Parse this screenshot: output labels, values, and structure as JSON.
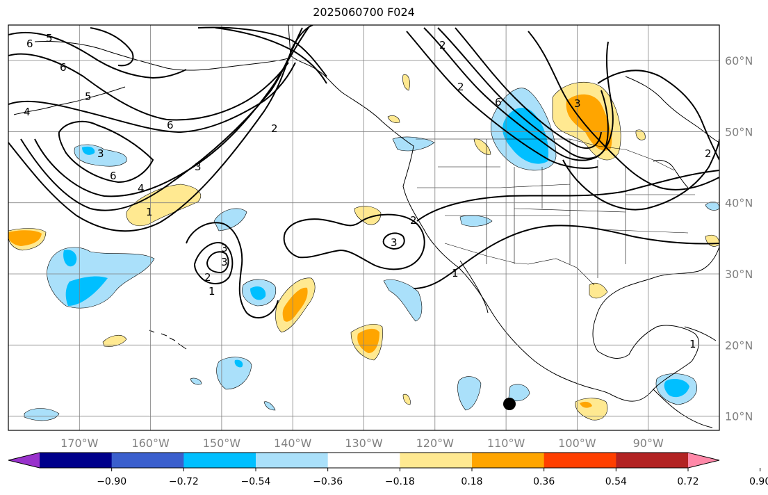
{
  "title": "2025060700 F024",
  "map": {
    "lon_labels": [
      "170°W",
      "160°W",
      "150°W",
      "140°W",
      "130°W",
      "120°W",
      "110°W",
      "100°W",
      "90°W"
    ],
    "lat_labels": [
      "60°N",
      "50°N",
      "40°N",
      "30°N",
      "20°N",
      "10°N"
    ],
    "lon_values": [
      -170,
      -160,
      -150,
      -140,
      -130,
      -120,
      -110,
      -100,
      -90
    ],
    "lat_values": [
      60,
      50,
      40,
      30,
      20,
      10
    ],
    "extent": {
      "lon_min": -180,
      "lon_max": -80,
      "lat_min": 8,
      "lat_max": 65
    },
    "gridline_color": "#808080",
    "contour_labels": [
      "6",
      "5",
      "6",
      "5",
      "4",
      "6",
      "3",
      "2",
      "6",
      "3",
      "4",
      "1",
      "2",
      "3",
      "3",
      "2",
      "1",
      "2",
      "3",
      "1",
      "3",
      "2",
      "6",
      "2",
      "1"
    ]
  },
  "colorbar": {
    "colors": [
      "#9932cc",
      "#00008b",
      "#3a5fcd",
      "#00bfff",
      "#aae0fa",
      "#ffffff",
      "#ffe991",
      "#ffa500",
      "#ff3f00",
      "#b22222",
      "#ff88a8"
    ],
    "tick_labels": [
      "−0.90",
      "−0.72",
      "−0.54",
      "−0.36",
      "−0.18",
      "0.18",
      "0.36",
      "0.54",
      "0.72",
      "0.90"
    ],
    "tick_values": [
      -0.9,
      -0.72,
      -0.54,
      -0.36,
      -0.18,
      0.18,
      0.36,
      0.54,
      0.72,
      0.9
    ],
    "extend": "both"
  }
}
